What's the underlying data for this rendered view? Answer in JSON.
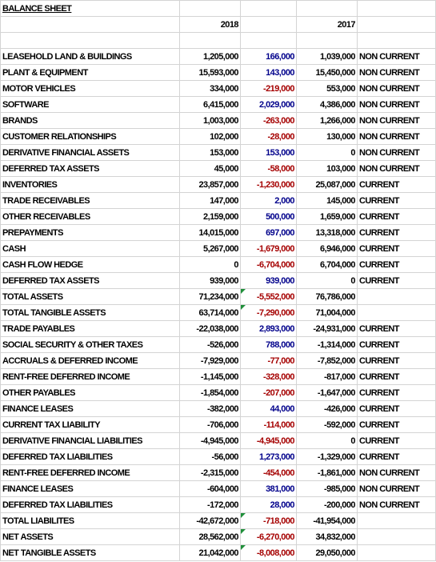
{
  "header": {
    "title": "BALANCE SHEET",
    "columns": [
      "2018",
      "2017"
    ]
  },
  "table": {
    "rows": [
      [
        "LEASEHOLD LAND & BUILDINGS",
        "1,205,000",
        "166,000",
        "1,039,000",
        "NON CURRENT"
      ],
      [
        "PLANT & EQUIPMENT",
        "15,593,000",
        "143,000",
        "15,450,000",
        "NON CURRENT"
      ],
      [
        "MOTOR VEHICLES",
        "334,000",
        "-219,000",
        "553,000",
        "NON CURRENT"
      ],
      [
        "SOFTWARE",
        "6,415,000",
        "2,029,000",
        "4,386,000",
        "NON CURRENT"
      ],
      [
        "BRANDS",
        "1,003,000",
        "-263,000",
        "1,266,000",
        "NON CURRENT"
      ],
      [
        "CUSTOMER RELATIONSHIPS",
        "102,000",
        "-28,000",
        "130,000",
        "NON CURRENT"
      ],
      [
        "DERIVATIVE FINANCIAL ASSETS",
        "153,000",
        "153,000",
        "0",
        "NON CURRENT"
      ],
      [
        "DEFERRED TAX ASSETS",
        "45,000",
        "-58,000",
        "103,000",
        "NON CURRENT"
      ],
      [
        "INVENTORIES",
        "23,857,000",
        "-1,230,000",
        "25,087,000",
        "CURRENT"
      ],
      [
        "TRADE RECEIVABLES",
        "147,000",
        "2,000",
        "145,000",
        "CURRENT"
      ],
      [
        "OTHER RECEIVABLES",
        "2,159,000",
        "500,000",
        "1,659,000",
        "CURRENT"
      ],
      [
        "PREPAYMENTS",
        "14,015,000",
        "697,000",
        "13,318,000",
        "CURRENT"
      ],
      [
        "CASH",
        "5,267,000",
        "-1,679,000",
        "6,946,000",
        "CURRENT"
      ],
      [
        "CASH FLOW HEDGE",
        "0",
        "-6,704,000",
        "6,704,000",
        "CURRENT"
      ],
      [
        "DEFERRED TAX ASSETS",
        "939,000",
        "939,000",
        "0",
        "CURRENT"
      ],
      [
        "TOTAL ASSETS",
        "71,234,000",
        "-5,552,000",
        "76,786,000"
      ],
      [
        "TOTAL TANGIBLE ASSETS",
        "63,714,000",
        "-7,290,000",
        "71,004,000"
      ],
      [
        "TRADE PAYABLES",
        "-22,038,000",
        "2,893,000",
        "-24,931,000",
        "CURRENT"
      ],
      [
        "SOCIAL SECURITY & OTHER TAXES",
        "-526,000",
        "788,000",
        "-1,314,000",
        "CURRENT"
      ],
      [
        "ACCRUALS & DEFERRED INCOME",
        "-7,929,000",
        "-77,000",
        "-7,852,000",
        "CURRENT"
      ],
      [
        "RENT-FREE DEFERRED INCOME",
        "-1,145,000",
        "-328,000",
        "-817,000",
        "CURRENT"
      ],
      [
        "OTHER PAYABLES",
        "-1,854,000",
        "-207,000",
        "-1,647,000",
        "CURRENT"
      ],
      [
        "FINANCE LEASES",
        "-382,000",
        "44,000",
        "-426,000",
        "CURRENT"
      ],
      [
        "CURRENT TAX LIABILITY",
        "-706,000",
        "-114,000",
        "-592,000",
        "CURRENT"
      ],
      [
        "DERIVATIVE FINANCIAL LIABILITIES",
        "-4,945,000",
        "-4,945,000",
        "0",
        "CURRENT"
      ],
      [
        "DEFERRED TAX LIABILITIES",
        "-56,000",
        "1,273,000",
        "-1,329,000",
        "CURRENT"
      ],
      [
        "RENT-FREE DEFERRED INCOME",
        "-2,315,000",
        "-454,000",
        "-1,861,000",
        "NON CURRENT"
      ],
      [
        "FINANCE LEASES",
        "-604,000",
        "381,000",
        "-985,000",
        "NON CURRENT"
      ],
      [
        "DEFERRED TAX LIABILITIES",
        "-172,000",
        "28,000",
        "-200,000",
        "NON CURRENT"
      ],
      [
        "TOTAL LIABILITES",
        "-42,672,000",
        "-718,000",
        "-41,954,000"
      ],
      [
        "NET ASSETS",
        "28,562,000",
        "-6,270,000",
        "34,832,000"
      ],
      [
        "NET TANGIBLE ASSETS",
        "21,042,000",
        "-8,008,000",
        "29,050,000"
      ]
    ]
  }
}
